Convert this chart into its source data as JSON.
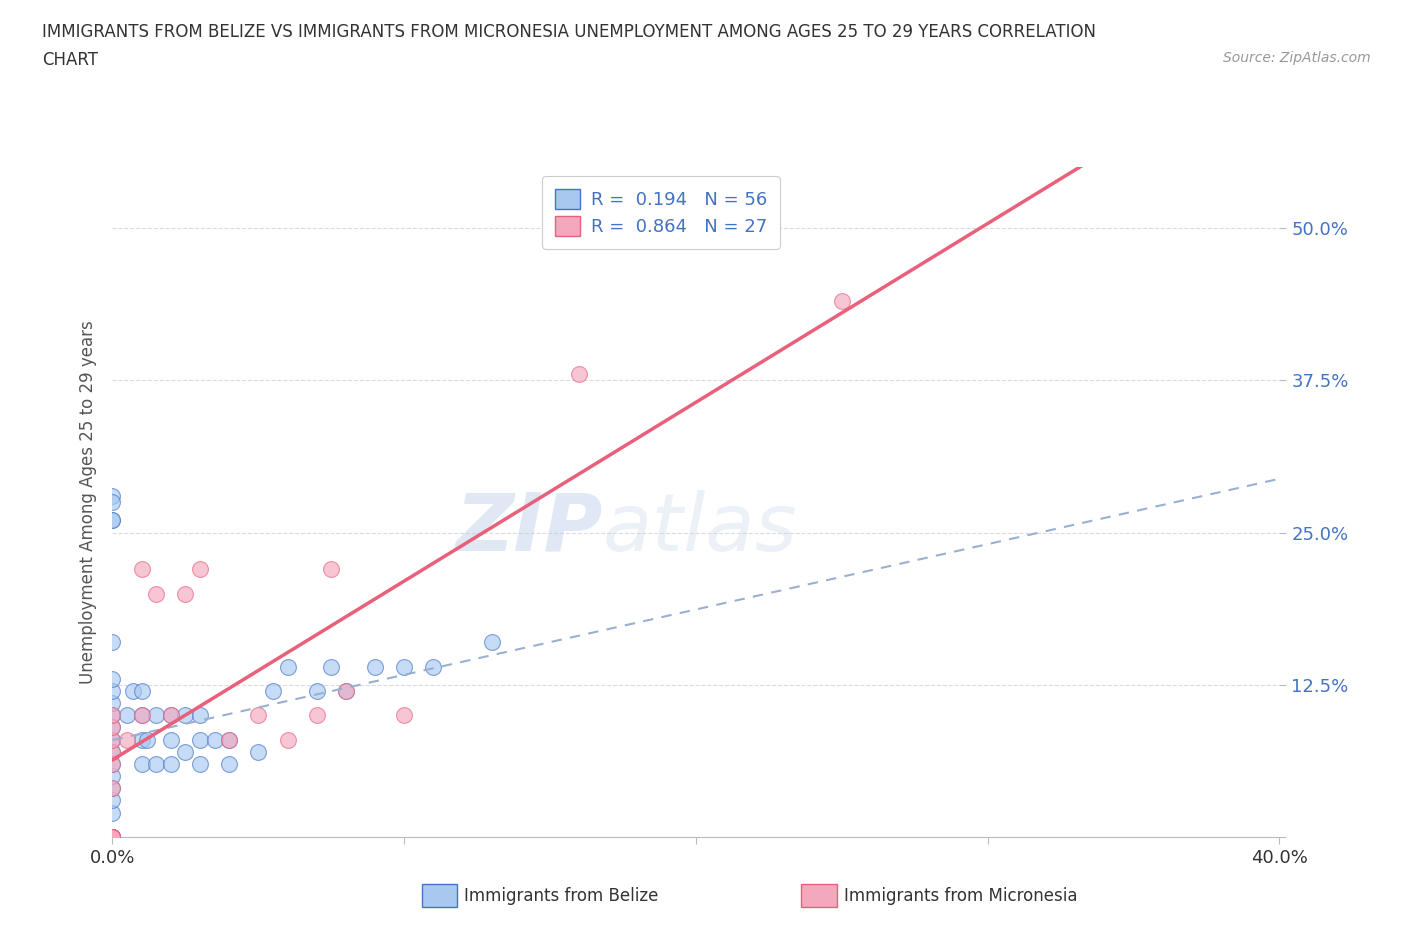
{
  "title_line1": "IMMIGRANTS FROM BELIZE VS IMMIGRANTS FROM MICRONESIA UNEMPLOYMENT AMONG AGES 25 TO 29 YEARS CORRELATION",
  "title_line2": "CHART",
  "source": "Source: ZipAtlas.com",
  "ylabel": "Unemployment Among Ages 25 to 29 years",
  "watermark_zip": "ZIP",
  "watermark_atlas": "atlas",
  "legend_label1": "Immigrants from Belize",
  "legend_label2": "Immigrants from Micronesia",
  "R1": 0.194,
  "N1": 56,
  "R2": 0.864,
  "N2": 27,
  "xlim": [
    0.0,
    0.4
  ],
  "ylim": [
    0.0,
    0.55
  ],
  "ytick_values": [
    0.0,
    0.125,
    0.25,
    0.375,
    0.5
  ],
  "ytick_labels": [
    "",
    "12.5%",
    "25.0%",
    "37.5%",
    "50.0%"
  ],
  "color_belize": "#a8c8f0",
  "color_micronesia": "#f4a8be",
  "trendline_color_belize": "#4472c4",
  "trendline_color_micronesia": "#e8607a",
  "trendline_dashed_color": "#9ab0d0",
  "background_color": "#ffffff",
  "grid_color": "#d8d8d8",
  "belize_x": [
    0.0,
    0.0,
    0.0,
    0.0,
    0.0,
    0.0,
    0.0,
    0.0,
    0.0,
    0.0,
    0.0,
    0.0,
    0.0,
    0.0,
    0.0,
    0.0,
    0.0,
    0.0,
    0.0,
    0.0,
    0.0,
    0.0,
    0.0,
    0.0,
    0.0,
    0.0,
    0.005,
    0.007,
    0.01,
    0.01,
    0.01,
    0.01,
    0.012,
    0.015,
    0.015,
    0.02,
    0.02,
    0.02,
    0.025,
    0.025,
    0.03,
    0.03,
    0.03,
    0.035,
    0.04,
    0.04,
    0.05,
    0.055,
    0.06,
    0.07,
    0.075,
    0.08,
    0.09,
    0.1,
    0.11,
    0.13
  ],
  "belize_y": [
    0.0,
    0.0,
    0.0,
    0.0,
    0.0,
    0.0,
    0.0,
    0.0,
    0.0,
    0.02,
    0.03,
    0.04,
    0.05,
    0.06,
    0.07,
    0.08,
    0.09,
    0.1,
    0.11,
    0.12,
    0.13,
    0.16,
    0.26,
    0.28,
    0.275,
    0.26,
    0.1,
    0.12,
    0.06,
    0.08,
    0.1,
    0.12,
    0.08,
    0.06,
    0.1,
    0.06,
    0.08,
    0.1,
    0.07,
    0.1,
    0.06,
    0.08,
    0.1,
    0.08,
    0.06,
    0.08,
    0.07,
    0.12,
    0.14,
    0.12,
    0.14,
    0.12,
    0.14,
    0.14,
    0.14,
    0.16
  ],
  "micronesia_x": [
    0.0,
    0.0,
    0.0,
    0.0,
    0.0,
    0.0,
    0.0,
    0.0,
    0.0,
    0.0,
    0.0,
    0.005,
    0.01,
    0.01,
    0.015,
    0.02,
    0.025,
    0.03,
    0.04,
    0.05,
    0.06,
    0.07,
    0.075,
    0.08,
    0.1,
    0.16,
    0.25
  ],
  "micronesia_y": [
    0.0,
    0.0,
    0.0,
    0.0,
    0.0,
    0.04,
    0.06,
    0.07,
    0.08,
    0.09,
    0.1,
    0.08,
    0.1,
    0.22,
    0.2,
    0.1,
    0.2,
    0.22,
    0.08,
    0.1,
    0.08,
    0.1,
    0.22,
    0.12,
    0.1,
    0.38,
    0.44
  ]
}
